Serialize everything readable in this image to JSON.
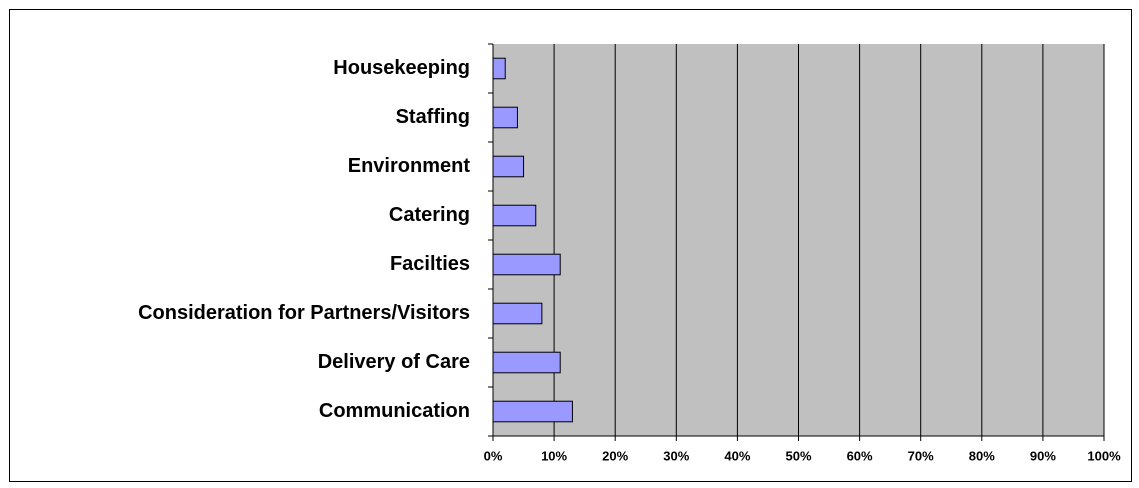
{
  "chart_data": {
    "type": "barh",
    "categories": [
      "Housekeeping",
      "Staffing",
      "Environment",
      "Catering",
      "Facilties",
      "Consideration for Partners/Visitors",
      "Delivery of Care",
      "Communication"
    ],
    "values": [
      2,
      4,
      5,
      7,
      11,
      8,
      11,
      13
    ],
    "color": "#9999ff",
    "xlim": [
      0,
      100
    ],
    "xticks": [
      {
        "value": 0,
        "label": "0%"
      },
      {
        "value": 10,
        "label": "10%"
      },
      {
        "value": 20,
        "label": "20%"
      },
      {
        "value": 30,
        "label": "30%"
      },
      {
        "value": 40,
        "label": "40%"
      },
      {
        "value": 50,
        "label": "50%"
      },
      {
        "value": 60,
        "label": "60%"
      },
      {
        "value": 70,
        "label": "70%"
      },
      {
        "value": 80,
        "label": "80%"
      },
      {
        "value": 90,
        "label": "90%"
      },
      {
        "value": 100,
        "label": "100%"
      }
    ],
    "grid": true
  }
}
